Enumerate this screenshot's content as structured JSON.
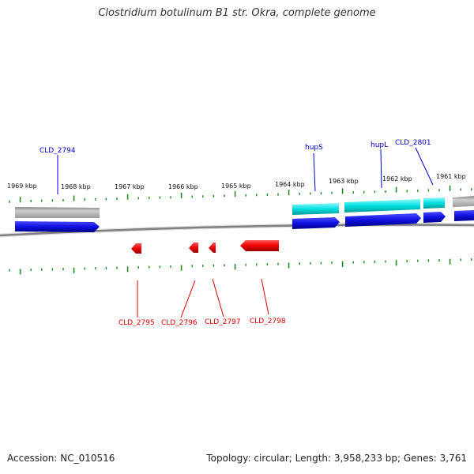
{
  "title": "Clostridium botulinum B1 str. Okra, complete genome",
  "footer": {
    "accession": "Accession: NC_010516",
    "stats": "Topology: circular; Length: 3,958,233 bp; Genes: 3,761"
  },
  "kbp_labels": [
    "1969 kbp",
    "1968 kbp",
    "1967 kbp",
    "1966 kbp",
    "1965 kbp",
    "1964 kbp",
    "1963 kbp",
    "1962 kbp",
    "1961 kbp"
  ],
  "forward_gene_labels": [
    "CLD_2794",
    "hupS",
    "hupL",
    "CLD_2801"
  ],
  "reverse_gene_labels": [
    "CLD_2795",
    "CLD_2796",
    "CLD_2797",
    "CLD_2798"
  ],
  "colors": {
    "forward_gene": "#1010e0",
    "reverse_gene": "#ee0000",
    "cds_cyan": "#00e0e0",
    "cds_grey": "#b8b8b8",
    "backbone": "#808080",
    "tick": "#228822",
    "forward_label": "#0000cc",
    "reverse_label": "#dd0000"
  }
}
